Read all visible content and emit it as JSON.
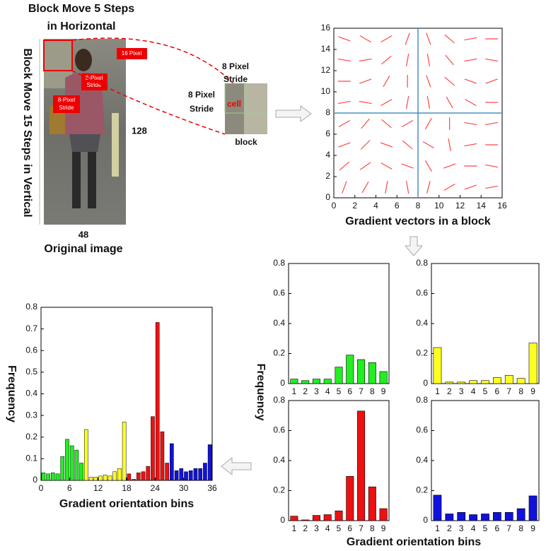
{
  "figure": {
    "photo_title": [
      "Block Move 5 Steps",
      "in Horizontal"
    ],
    "photo_side": "Block Move 15 Steps in Vertical",
    "block_size": "16 Pixel",
    "stride_a": [
      "8-Pixel",
      "Stride"
    ],
    "stride_b": [
      "8-Pixel",
      "Stride"
    ],
    "height": "128",
    "width": "48",
    "caption": "Original image",
    "stride_top": [
      "8 Pixel",
      "Stride"
    ],
    "stride_left": [
      "8 Pixel",
      "Stride"
    ],
    "cell": "cell",
    "block": "block",
    "group_ylabel": "Frequency",
    "group_xlabel": "Gradient orientation bins"
  },
  "chart_data": [
    {
      "type": "quiver",
      "xlabel": "Gradient vectors in a block",
      "x": [
        1,
        3,
        5,
        7,
        9,
        11,
        13,
        15
      ],
      "y": [
        1,
        3,
        5,
        7,
        9,
        11,
        13,
        15
      ],
      "angles": [
        [
          70,
          60,
          80,
          100,
          75,
          30,
          20,
          10
        ],
        [
          40,
          35,
          150,
          160,
          120,
          20,
          0,
          170
        ],
        [
          20,
          45,
          160,
          140,
          150,
          100,
          10,
          0
        ],
        [
          30,
          50,
          140,
          30,
          60,
          90,
          170,
          10
        ],
        [
          10,
          170,
          30,
          80,
          100,
          120,
          150,
          0
        ],
        [
          0,
          20,
          60,
          90,
          110,
          140,
          160,
          20
        ],
        [
          170,
          10,
          40,
          80,
          100,
          130,
          10,
          170
        ],
        [
          160,
          150,
          30,
          70,
          110,
          140,
          10,
          0
        ]
      ],
      "reference_lines": {
        "x": 8,
        "y": 8
      },
      "color": "#ff4444",
      "line_color": "#4a90c0",
      "xlim": [
        0,
        16
      ],
      "ylim": [
        0,
        16
      ],
      "xticks": [
        0,
        2,
        4,
        6,
        8,
        10,
        12,
        14,
        16
      ],
      "yticks": [
        0,
        2,
        4,
        6,
        8,
        10,
        12,
        14,
        16
      ]
    },
    {
      "type": "bar",
      "categories": [
        1,
        2,
        3,
        4,
        5,
        6,
        7,
        8,
        9
      ],
      "values": [
        0.03,
        0.02,
        0.03,
        0.03,
        0.11,
        0.19,
        0.16,
        0.14,
        0.08
      ],
      "color": "#22ee22",
      "ylim": [
        0,
        0.8
      ],
      "yticks": [
        0,
        0.2,
        0.4,
        0.6,
        0.8
      ]
    },
    {
      "type": "bar",
      "categories": [
        1,
        2,
        3,
        4,
        5,
        6,
        7,
        8,
        9
      ],
      "values": [
        0.24,
        0.01,
        0.01,
        0.02,
        0.02,
        0.04,
        0.055,
        0.035,
        0.27
      ],
      "color": "#ffff22",
      "ylim": [
        0,
        0.8
      ],
      "yticks": [
        0,
        0.2,
        0.4,
        0.6,
        0.8
      ]
    },
    {
      "type": "bar",
      "categories": [
        1,
        2,
        3,
        4,
        5,
        6,
        7,
        8,
        9
      ],
      "values": [
        0.03,
        0.005,
        0.035,
        0.04,
        0.065,
        0.295,
        0.73,
        0.225,
        0.08
      ],
      "color": "#ee1111",
      "ylim": [
        0,
        0.8
      ],
      "yticks": [
        0,
        0.2,
        0.4,
        0.6,
        0.8
      ]
    },
    {
      "type": "bar",
      "categories": [
        1,
        2,
        3,
        4,
        5,
        6,
        7,
        8,
        9
      ],
      "values": [
        0.17,
        0.045,
        0.055,
        0.04,
        0.045,
        0.055,
        0.055,
        0.08,
        0.165
      ],
      "color": "#1111dd",
      "ylim": [
        0,
        0.8
      ],
      "yticks": [
        0,
        0.2,
        0.4,
        0.6,
        0.8
      ]
    },
    {
      "type": "histogram",
      "xlabel": "Gradient orientation bins",
      "ylabel": "Frequency",
      "bins": [
        0,
        1,
        2,
        3,
        4,
        5,
        6,
        7,
        8,
        9,
        10,
        11,
        12,
        13,
        14,
        15,
        16,
        17,
        18,
        19,
        20,
        21,
        22,
        23,
        24,
        25,
        26,
        27,
        28,
        29,
        30,
        31,
        32,
        33,
        34,
        35,
        36
      ],
      "series": [
        {
          "color": "#22ee22",
          "values": [
            0.035,
            0.03,
            0.035,
            0.03,
            0.11,
            0.19,
            0.16,
            0.14,
            0.08
          ]
        },
        {
          "color": "#ffff22",
          "values": [
            0.235,
            0.015,
            0.015,
            0.02,
            0.025,
            0.02,
            0.04,
            0.055,
            0.27
          ]
        },
        {
          "color": "#ee1111",
          "values": [
            0.03,
            0.005,
            0.035,
            0.04,
            0.065,
            0.295,
            0.73,
            0.225,
            0.08
          ]
        },
        {
          "color": "#1111dd",
          "values": [
            0.17,
            0.045,
            0.055,
            0.04,
            0.045,
            0.055,
            0.055,
            0.08,
            0.165
          ]
        }
      ],
      "xlim": [
        0,
        36
      ],
      "ylim": [
        0,
        0.8
      ],
      "xticks": [
        0,
        6,
        12,
        18,
        24,
        30,
        36
      ],
      "yticks": [
        0,
        0.1,
        0.2,
        0.3,
        0.4,
        0.5,
        0.6,
        0.7,
        0.8
      ]
    }
  ]
}
